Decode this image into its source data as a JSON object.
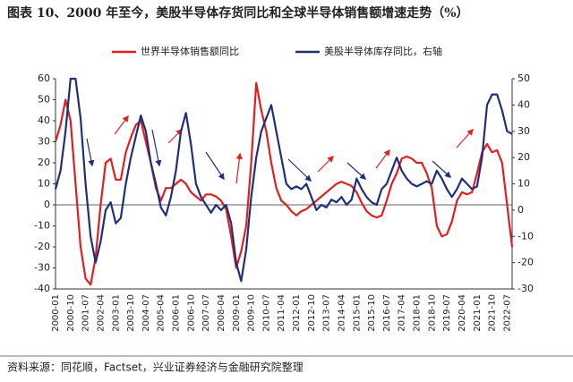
{
  "chart_data": {
    "type": "line",
    "title": "图表 10、2000 年至今，美股半导体存货同比和全球半导体销售额增速走势（%）",
    "source": "资料来源：同花顺，Factset，兴业证券经济与金融研究院整理",
    "categories": [
      "2000-01",
      null,
      null,
      "2000-10",
      null,
      null,
      "2001-07",
      null,
      null,
      "2002-04",
      null,
      null,
      "2003-01",
      null,
      null,
      "2003-10",
      null,
      null,
      "2004-07",
      null,
      null,
      "2005-04",
      null,
      null,
      "2006-01",
      null,
      null,
      "2006-10",
      null,
      null,
      "2007-07",
      null,
      null,
      "2008-04",
      null,
      null,
      "2009-01",
      null,
      null,
      "2009-10",
      null,
      null,
      "2010-07",
      null,
      null,
      "2011-04",
      null,
      null,
      "2012-01",
      null,
      null,
      "2012-10",
      null,
      null,
      "2013-07",
      null,
      null,
      "2014-04",
      null,
      null,
      "2015-01",
      null,
      null,
      "2015-10",
      null,
      null,
      "2016-07",
      null,
      null,
      "2017-04",
      null,
      null,
      "2018-01",
      null,
      null,
      "2018-10",
      null,
      null,
      "2019-07",
      null,
      null,
      "2020-04",
      null,
      null,
      "2021-01",
      null,
      null,
      "2021-10",
      null,
      null,
      "2022-07",
      null
    ],
    "series": [
      {
        "name": "世界半导体销售额同比",
        "color": "#e02020",
        "values": [
          30,
          38,
          50,
          40,
          10,
          -20,
          -35,
          -38,
          -25,
          0,
          20,
          22,
          12,
          12,
          25,
          32,
          38,
          40,
          30,
          20,
          8,
          2,
          8,
          8,
          10,
          12,
          10,
          6,
          4,
          2,
          5,
          5,
          4,
          2,
          -2,
          -15,
          -30,
          -22,
          -10,
          20,
          58,
          45,
          35,
          20,
          8,
          2,
          0,
          -3,
          -5,
          -3,
          -2,
          0,
          2,
          4,
          6,
          8,
          10,
          11,
          10,
          9,
          6,
          1,
          -3,
          -5,
          -6,
          -5,
          2,
          10,
          15,
          22,
          23,
          22,
          20,
          20,
          15,
          8,
          -10,
          -15,
          -14,
          -8,
          2,
          6,
          5,
          6,
          15,
          25,
          29,
          25,
          26,
          20,
          0,
          -20
        ]
      },
      {
        "name": "美股半导体库存同比，右轴",
        "color": "#1f2f7a",
        "axis": "y2",
        "values": [
          8,
          15,
          30,
          50,
          50,
          35,
          10,
          -10,
          -20,
          -12,
          0,
          3,
          -5,
          -3,
          10,
          20,
          28,
          36,
          30,
          18,
          10,
          1,
          -2,
          5,
          15,
          30,
          37,
          25,
          10,
          5,
          2,
          -1,
          2,
          0,
          2,
          -5,
          -20,
          -27,
          -15,
          5,
          20,
          30,
          35,
          40,
          30,
          20,
          10,
          8,
          9,
          8,
          10,
          5,
          0,
          2,
          1,
          4,
          3,
          5,
          2,
          4,
          12,
          8,
          5,
          3,
          2,
          8,
          10,
          15,
          20,
          15,
          12,
          10,
          9,
          10,
          11,
          10,
          15,
          12,
          8,
          5,
          8,
          12,
          10,
          8,
          9,
          20,
          40,
          44,
          44,
          38,
          30,
          29
        ]
      }
    ],
    "ylim": [
      -40,
      60
    ],
    "yticks": [
      -40,
      -30,
      -20,
      -10,
      0,
      10,
      20,
      30,
      40,
      50,
      60
    ],
    "y2lim": [
      -30,
      50
    ],
    "y2ticks": [
      -30,
      -20,
      -10,
      0,
      10,
      20,
      30,
      40,
      50
    ]
  }
}
